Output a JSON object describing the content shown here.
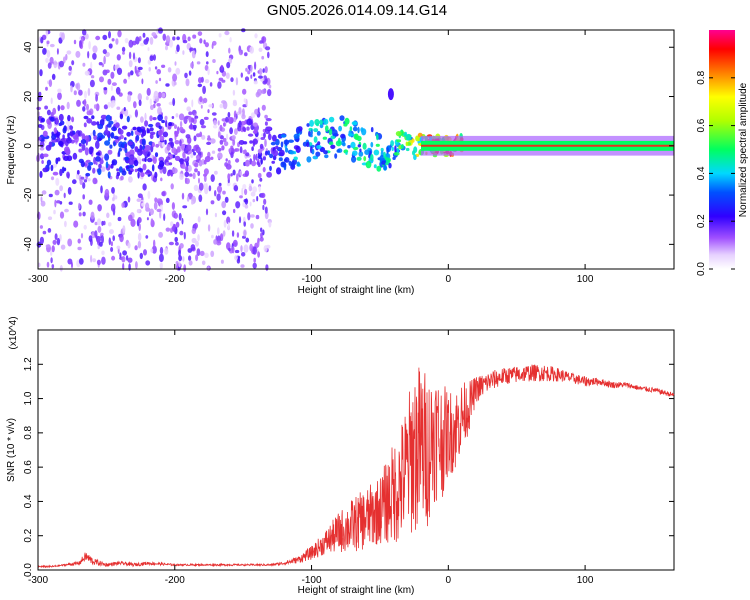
{
  "title": "GN05.2026.014.09.14.G14",
  "colors": {
    "snr_line": "#e53030",
    "spectrogram_scatter": "#7a2ee6",
    "spectrogram_core": "#e83020"
  },
  "chart_data": [
    {
      "type": "heatmap",
      "name": "spectrogram",
      "xlabel": "Height of straight line (km)",
      "ylabel": "Frequency (Hz)",
      "xlim": [
        -300,
        165
      ],
      "ylim": [
        -50,
        47
      ],
      "x_ticks": [
        -300,
        -200,
        -100,
        0,
        100
      ],
      "y_ticks": [
        -40,
        -20,
        0,
        20,
        40
      ],
      "colorbar": {
        "label": "Normalized spectral amplitude",
        "range": [
          0.0,
          1.0
        ],
        "ticks": [
          0.0,
          0.2,
          0.4,
          0.6,
          0.8
        ],
        "colormap": [
          "#ffffff",
          "#c080ff",
          "#6a00ff",
          "#0000ff",
          "#00d8ff",
          "#00ff60",
          "#b0ff00",
          "#ffff00",
          "#ff8000",
          "#ff0000",
          "#ff0090"
        ]
      },
      "ridge": {
        "x": [
          -280,
          -250,
          -220,
          -200,
          -170,
          -140,
          -120,
          -100,
          -80,
          -60,
          -50,
          -45,
          -40,
          -35,
          -30,
          -25,
          -20,
          -10,
          0,
          50,
          100,
          165
        ],
        "freq": [
          0,
          0,
          0,
          0,
          0,
          0,
          -3,
          2,
          4,
          0,
          -3,
          -6,
          -2,
          2,
          1,
          -1,
          1,
          0,
          0,
          0,
          0,
          0
        ],
        "amplitude": [
          0.25,
          0.3,
          0.25,
          0.2,
          0.15,
          0.2,
          0.35,
          0.45,
          0.45,
          0.5,
          0.5,
          0.45,
          0.45,
          0.55,
          0.6,
          0.7,
          0.8,
          0.85,
          0.9,
          0.9,
          0.9,
          0.85
        ]
      },
      "blob": {
        "x": -42,
        "freq": 21,
        "amplitude": 0.2
      }
    },
    {
      "type": "line",
      "name": "snr",
      "xlabel": "Height of straight line (km)",
      "ylabel": "SNR (10 * v/v)",
      "y_multiplier": "(x10^4)",
      "xlim": [
        -300,
        165
      ],
      "ylim": [
        0.0,
        1.4
      ],
      "x_ticks": [
        -300,
        -200,
        -100,
        0,
        100
      ],
      "y_ticks": [
        0.0,
        0.2,
        0.4,
        0.6,
        0.8,
        1.0,
        1.2
      ],
      "series": [
        {
          "x": [
            -300,
            -290,
            -280,
            -270,
            -265,
            -260,
            -250,
            -240,
            -230,
            -220,
            -200,
            -180,
            -160,
            -140,
            -130,
            -120,
            -110,
            -100,
            -90,
            -80,
            -70,
            -60,
            -50,
            -45,
            -40,
            -35,
            -30,
            -25,
            -20,
            -15,
            -10,
            -5,
            0,
            5,
            10,
            15,
            20,
            30,
            40,
            50,
            60,
            70,
            80,
            90,
            100,
            110,
            120,
            130,
            140,
            150,
            165
          ],
          "y": [
            0.02,
            0.02,
            0.03,
            0.04,
            0.08,
            0.05,
            0.03,
            0.04,
            0.03,
            0.04,
            0.03,
            0.03,
            0.03,
            0.03,
            0.03,
            0.04,
            0.06,
            0.1,
            0.16,
            0.22,
            0.26,
            0.3,
            0.35,
            0.4,
            0.45,
            0.5,
            0.6,
            0.7,
            0.72,
            0.7,
            0.8,
            0.75,
            0.8,
            0.82,
            0.9,
            0.95,
            1.05,
            1.1,
            1.13,
            1.14,
            1.15,
            1.15,
            1.14,
            1.12,
            1.1,
            1.1,
            1.08,
            1.08,
            1.06,
            1.05,
            1.02
          ],
          "noise": [
            0.005,
            0.005,
            0.005,
            0.01,
            0.03,
            0.02,
            0.01,
            0.01,
            0.01,
            0.01,
            0.005,
            0.005,
            0.005,
            0.005,
            0.005,
            0.01,
            0.02,
            0.04,
            0.07,
            0.12,
            0.16,
            0.18,
            0.2,
            0.25,
            0.3,
            0.35,
            0.4,
            0.5,
            0.5,
            0.45,
            0.4,
            0.35,
            0.25,
            0.25,
            0.2,
            0.15,
            0.08,
            0.06,
            0.05,
            0.05,
            0.05,
            0.05,
            0.04,
            0.03,
            0.03,
            0.02,
            0.02,
            0.015,
            0.015,
            0.015,
            0.015
          ]
        }
      ]
    }
  ]
}
